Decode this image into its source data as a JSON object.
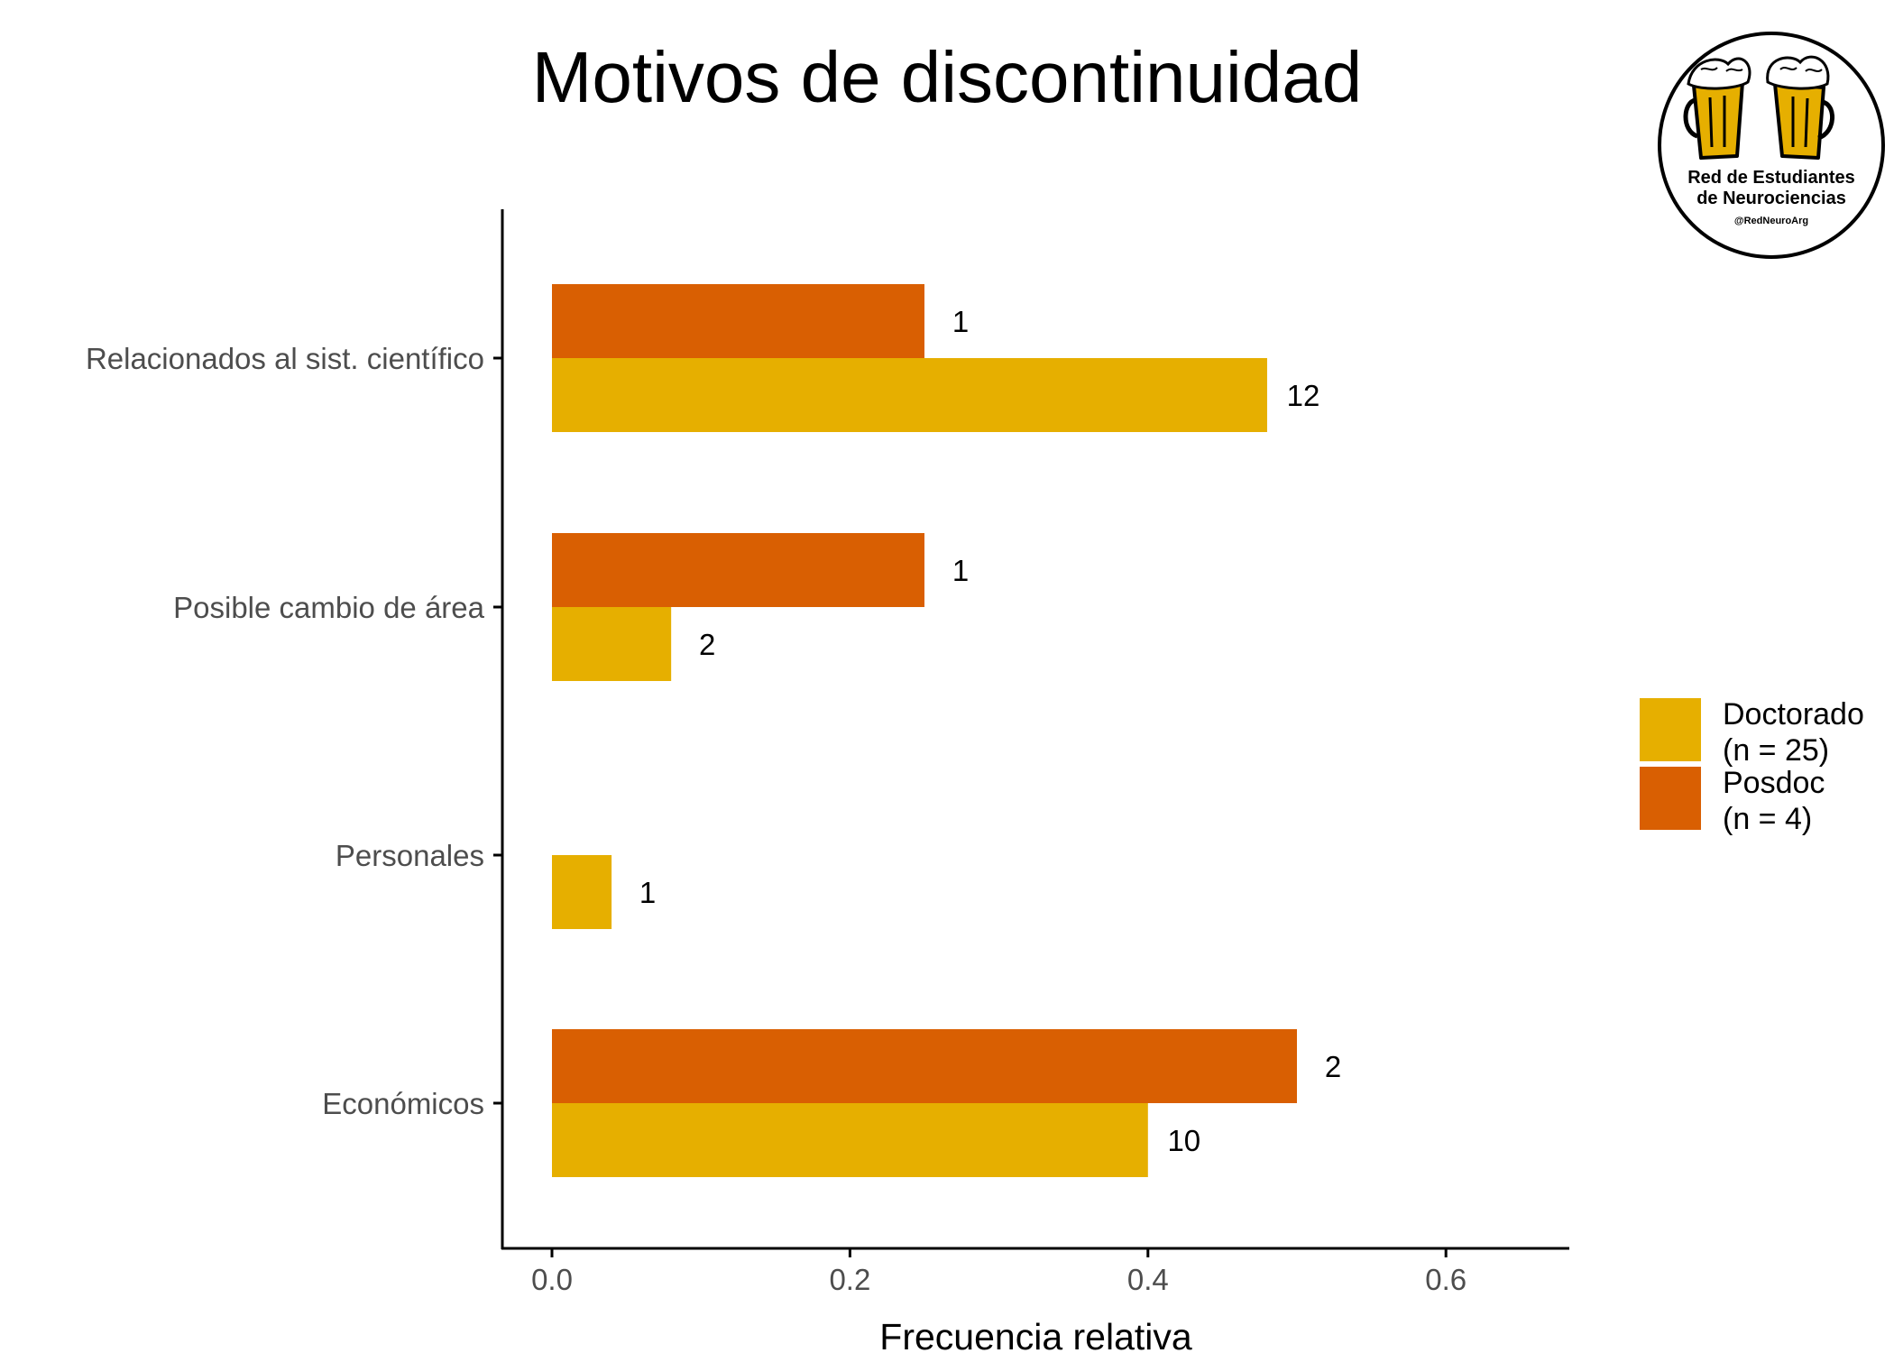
{
  "chart_data": {
    "type": "bar",
    "orientation": "horizontal",
    "title": "Motivos de discontinuidad",
    "xlabel": "Frecuencia relativa",
    "ylabel": "",
    "categories": [
      "Relacionados al sist. científico",
      "Posible cambio de área",
      "Personales",
      "Económicos"
    ],
    "series": [
      {
        "name": "Doctorado",
        "legend_lines": [
          "Doctorado",
          "(n = 25)"
        ],
        "color": "#E6AF00",
        "values": [
          0.48,
          0.08,
          0.04,
          0.4
        ],
        "labels": [
          "12",
          "2",
          "1",
          "10"
        ]
      },
      {
        "name": "Posdoc",
        "legend_lines": [
          "Posdoc",
          "(n = 4)"
        ],
        "color": "#D95F02",
        "values": [
          0.25,
          0.25,
          0,
          0.5
        ],
        "labels": [
          "1",
          "1",
          "",
          "2"
        ]
      }
    ],
    "xticks": [
      "0.0",
      "0.2",
      "0.4",
      "0.6"
    ],
    "xlim": [
      -0.033,
      0.68
    ],
    "grid": false,
    "legend_position": "right"
  },
  "logo": {
    "line1": "Red de Estudiantes",
    "line2": "de Neurociencias",
    "handle": "@RedNeuroArg",
    "beer_color": "#E6AF00"
  }
}
